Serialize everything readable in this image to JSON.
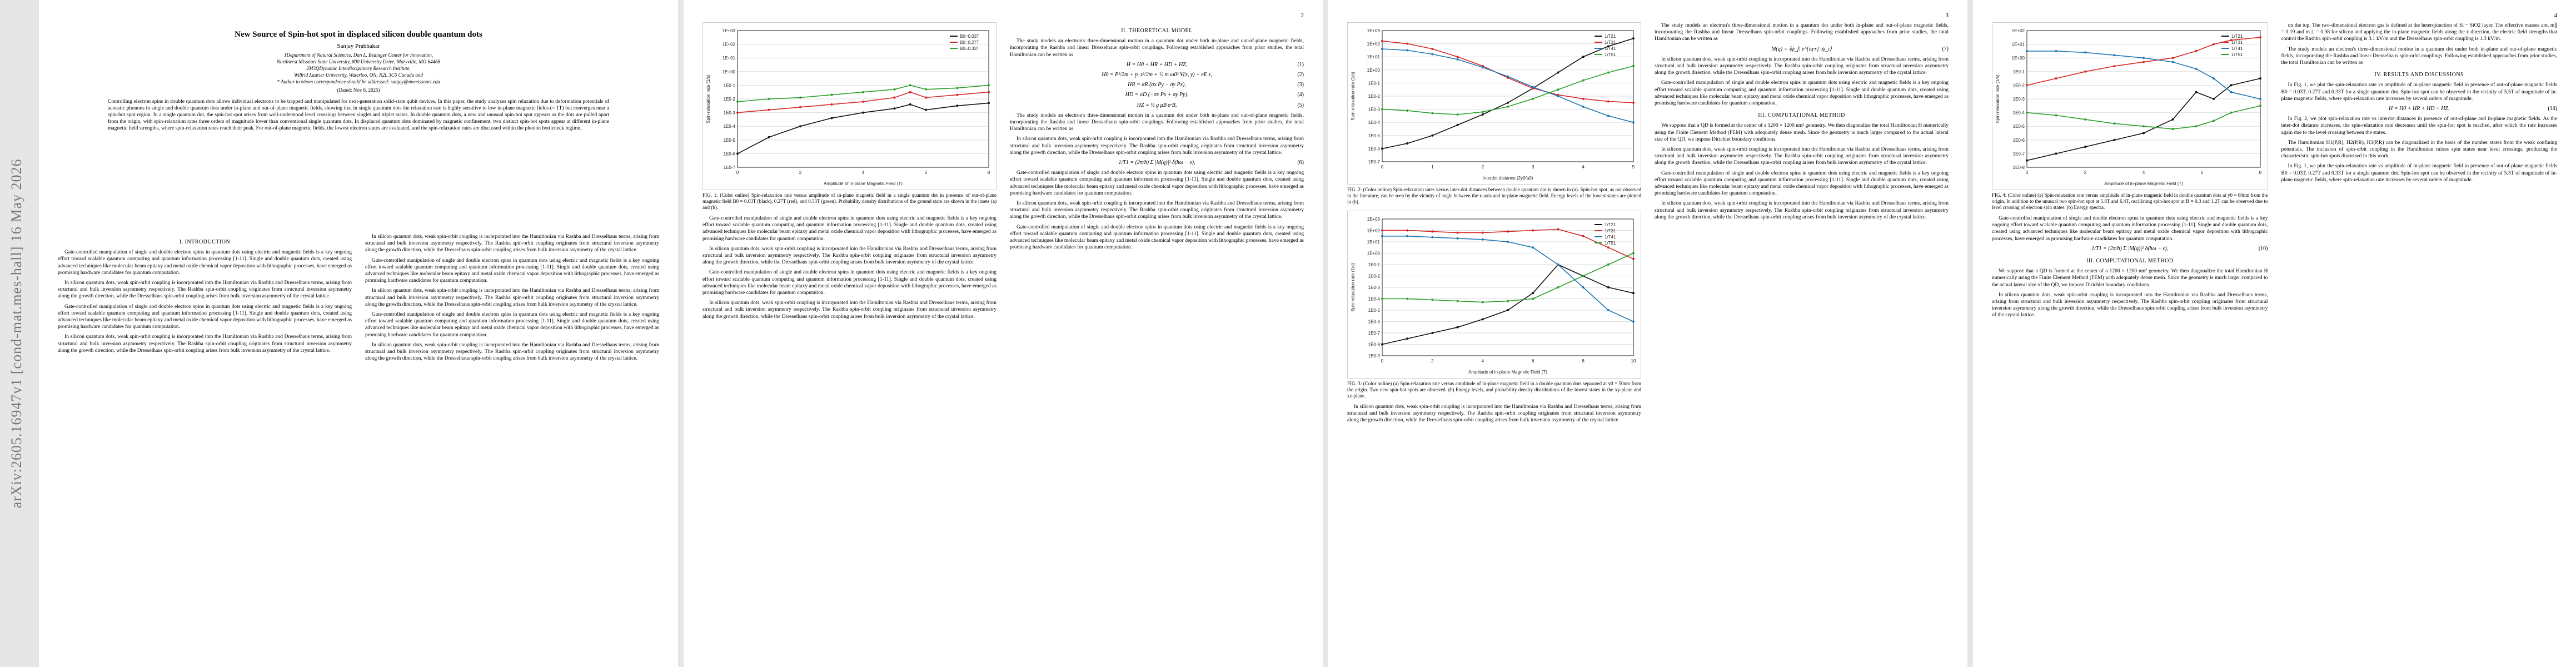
{
  "arxiv_id": "arXiv:2605.16947v1  [cond-mat.mes-hall]  16 May 2026",
  "pages": [
    {
      "number": ""
    },
    {
      "number": "2"
    },
    {
      "number": "3"
    },
    {
      "number": "4"
    }
  ],
  "paper": {
    "title": "New Source of Spin-hot spot in displaced silicon double quantum dots",
    "author": "Sanjay Prabhakar",
    "affiliations": [
      "1Department of Natural Sciences, Dan L. Bedinger Center for Innovation,",
      "Northwest Missouri State University, 800 University Drive, Maryville, MO 64468",
      "2M3QDynamic Interdisciplinary Research Institute,",
      "Wilfrid Laurier University, Waterloo, ON, N2L 3C5 Canada and",
      "* Author to whom correspondence should be addressed: sanjay@nwmissouri.edu"
    ],
    "date": "(Dated: Nov 8, 2025)",
    "abstract": "Controlling electron spins in double quantum dots allows individual electrons to be trapped and manipulated for next-generation solid-state qubit devices. In this paper, the study analyzes spin relaxation due to deformation potentials of acoustic phonons in single and double quantum dots under in-plane and out-of-plane magnetic fields, showing that in single quantum dots the relaxation rate is highly sensitive to low in-plane magnetic fields (< 1T) but converges near a spin-hot spot region. In a single quantum dot, the spin-hot spot arises from well-understood level crossings between singlet and triplet states. In double quantum dots, a new and unusual spin-hot spot appears as the dots are pulled apart from the origin, with spin-relaxation rates three orders of magnitude lower than conventional single quantum dots. In displaced quantum dots dominated by magnetic confinement, two distinct spin-hot spots appear at different in-plane magnetic field strengths, where spin-relaxation rates reach their peak. For out-of-plane magnetic fields, the lowest electron states are evaluated, and the spin-relaxation rates are discussed within the phonon bottleneck regime.",
    "section1": "I.   INTRODUCTION",
    "section2": "II.   THEORETICAL MODEL",
    "section3": "III.   COMPUTATIONAL METHOD",
    "section4": "IV.   RESULTS AND DISCUSSIONS",
    "intro_p1": "Gate-controlled manipulation of single and double electron spins in quantum dots using electric and magnetic fields is a key ongoing effort toward scalable quantum computing and quantum information processing [1-11]. Single and double quantum dots, created using advanced techniques like molecular beam epitaxy and metal oxide chemical vapor deposition with lithographic processes, have emerged as promising hardware candidates for quantum computation.",
    "intro_p2": "In silicon quantum dots, weak spin-orbit coupling is incorporated into the Hamiltonian via Rashba and Dresselhaus terms, arising from structural and bulk inversion asymmetry respectively. The Rashba spin-orbit coupling originates from structural inversion asymmetry along the growth direction, while the Dresselhaus spin-orbit coupling arises from bulk inversion asymmetry of the crystal lattice.",
    "model_p1": "The study models an electron's three-dimensional motion in a quantum dot under both in-plane and out-of-plane magnetic fields, incorporating the Rashba and linear Dresselhaus spin-orbit couplings. Following established approaches from prior studies, the total Hamiltonian can be written as",
    "eq1": "H = H0 + HR + HD + HZ,",
    "eq2": "H0 = P²/2m + p_z²/2m + ½ m ω0² V(x, y) + eE z,",
    "eq3": "HR = αR (σx Py − σy Px),",
    "eq4": "HD = αD (−σx Px + σy Py),",
    "eq5": "HZ = ½ g μB σ·B,",
    "fig1_caption": "FIG. 1: (Color online) Spin-relaxation rate versus amplitude of in-plane magnetic field in a single quantum dot in presence of out-of-plane magnetic field B0 = 0.03T (black), 0.27T (red), and 0.33T (green). Probability density distributions of the ground state are shown in the insets (a) and (b).",
    "fig2_caption": "FIG. 2: (Color online) Spin-relaxation rates versus inter-dot distances between double quantum dot is shown in (a). Spin-hot spot, as not observed in the literature, can be seen by the vicinity of angle between the x-axis and in-plane magnetic field. Energy levels of the lowest states are plotted in (b).",
    "fig3_caption": "FIG. 3: (Color online) (a) Spin-relaxation rate versus amplitude of in-plane magnetic field in a double quantum dots separated at y0 = 50nm from the origin. Two new spin-hot spots are observed. (b) Energy levels, and probability density distributions of the lowest states in the xy-plane and xz-plane.",
    "fig4_caption": "FIG. 4: (Color online) (a) Spin-relaxation rate versus amplitude of in-plane magnetic field in double quantum dots at y0 = 60nm from the origin. In addition to the unusual two spin-hot spot at 5.8T and 6.4T, oscillating spin-hot spot at B = 0.3 and 1.2T can be observed due to level crossing of electron spin states. (b) Energy spectra.",
    "eq_relax": "1/T1 = (2π/ħ) Σ |M(q)|² δ(ħω − ε),",
    "eq_m": "M(q) = ⟨ψ_f| e^{iq·r} |ψ_i⟩",
    "method_p1": "We suppose that a QD is formed at the center of a 1200 × 1200 nm² geometry. We then diagonalize the total Hamiltonian H numerically using the Finite Element Method (FEM) with adequately dense mesh. Since the geometry is much larger compared to the actual lateral size of the QD, we impose Dirichlet boundary conditions.",
    "results_p1": "In Fig. 1, we plot the spin-relaxation rate vs amplitude of in-plane magnetic field in presence of out-of-plane magnetic fields B0 = 0.03T, 0.27T and 0.33T for a single quantum dot. Spin-hot spot can be observed in the vicinity of 5.5T of magnitude of in-plane magnetic fields, where spin-relaxation rate increases by several orders of magnitude.",
    "results_p2": "In Fig. 2, we plot spin-relaxation rate vs interdot distances in presence of out-of-plane and in-plane magnetic fields. As the inter-dot distance increases, the spin-relaxation rate decreases until the spin-hot spot is reached, after which the rate increases again due to the level crossing between the states.",
    "col4_p1": "on the top. The two-dimensional electron gas is defined at the heterojunction of Si − SiO2 layer. The effective masses are, m∥ = 0.19 and m⊥ = 0.98 for silicon and applying the in-plane magnetic fields along the x direction, the electric field strengths that control the Rashba spin-orbit coupling is 3.1 kV/m and the Dresselhaus spin-orbit coupling is 1.3 kV/m.",
    "col4_p2": "The Hamiltonian H1(P,R), H2(P,R), H3(P,R) can be diagonalized in the basis of the number states from the weak confining potentials. The inclusion of spin-orbit coupling in the Hamiltonian mixes spin states near level crossings, producing the characteristic spin-hot spots discussed in this work."
  },
  "chart_data": [
    {
      "type": "line",
      "title": "",
      "xlabel": "Amplitude of in-plane Magnetic Field (T)",
      "ylabel": "Spin-relaxation rate (1/s)",
      "scale_y": "log",
      "xlim": [
        0,
        8
      ],
      "ylim_exp": [
        -7,
        3
      ],
      "series": [
        {
          "name": "B0=0.03T",
          "color": "#111111",
          "x": [
            0,
            1,
            2,
            3,
            4,
            5,
            5.5,
            6,
            7,
            8
          ],
          "y_exp": [
            -6,
            -4.8,
            -4,
            -3.4,
            -3,
            -2.7,
            -2.4,
            -2.8,
            -2.5,
            -2.3
          ]
        },
        {
          "name": "B0=0.27T",
          "color": "#d62728",
          "x": [
            0,
            1,
            2,
            3,
            4,
            5,
            5.5,
            6,
            7,
            8
          ],
          "y_exp": [
            -3,
            -2.8,
            -2.6,
            -2.4,
            -2.2,
            -1.9,
            -1.5,
            -1.9,
            -1.7,
            -1.5
          ]
        },
        {
          "name": "B0=0.33T",
          "color": "#2ca02c",
          "x": [
            0,
            1,
            2,
            3,
            4,
            5,
            5.5,
            6,
            7,
            8
          ],
          "y_exp": [
            -2.2,
            -2,
            -1.9,
            -1.7,
            -1.5,
            -1.3,
            -1,
            -1.3,
            -1.2,
            -1
          ]
        }
      ]
    },
    {
      "type": "line",
      "title": "",
      "xlabel": "Interdot distance (2y0/a0)",
      "ylabel": "Spin-relaxation rate (1/s)",
      "scale_y": "log",
      "xlim": [
        0,
        5
      ],
      "ylim_exp": [
        -7,
        3
      ],
      "series": [
        {
          "name": "1/T21",
          "color": "#111111",
          "x": [
            0,
            0.5,
            1,
            1.5,
            2,
            2.5,
            3,
            3.5,
            4,
            4.5,
            5
          ],
          "y_exp": [
            -6,
            -5.6,
            -5,
            -4.2,
            -3.4,
            -2.5,
            -1.4,
            -0.2,
            1,
            1.8,
            2.4
          ]
        },
        {
          "name": "1/T31",
          "color": "#d62728",
          "x": [
            0,
            0.5,
            1,
            1.5,
            2,
            2.5,
            3,
            3.5,
            4,
            4.5,
            5
          ],
          "y_exp": [
            2.2,
            2,
            1.6,
            1,
            0.3,
            -0.6,
            -1.4,
            -1.9,
            -2.2,
            -2.4,
            -2.5
          ]
        },
        {
          "name": "1/T41",
          "color": "#1f77b4",
          "x": [
            0,
            0.5,
            1,
            1.5,
            2,
            2.5,
            3,
            3.5,
            4,
            4.5,
            5
          ],
          "y_exp": [
            1.6,
            1.5,
            1.2,
            0.8,
            0.2,
            -0.5,
            -1.3,
            -2,
            -2.8,
            -3.5,
            -4
          ]
        },
        {
          "name": "1/T51",
          "color": "#2ca02c",
          "x": [
            0,
            0.5,
            1,
            1.5,
            2,
            2.5,
            3,
            3.5,
            4,
            4.5,
            5
          ],
          "y_exp": [
            -3,
            -3.1,
            -3.3,
            -3.4,
            -3.2,
            -2.8,
            -2.2,
            -1.5,
            -0.8,
            -0.2,
            0.3
          ]
        }
      ]
    },
    {
      "type": "line",
      "title": "",
      "xlabel": "Amplitude of in-plane Magnetic Field (T)",
      "ylabel": "Spin-relaxation rate (1/s)",
      "scale_y": "log",
      "xlim": [
        0,
        10
      ],
      "ylim_exp": [
        -9,
        3
      ],
      "series": [
        {
          "name": "1/T21",
          "color": "#111111",
          "x": [
            0,
            1,
            2,
            3,
            4,
            5,
            6,
            7,
            8,
            9,
            10
          ],
          "y_exp": [
            -8,
            -7.5,
            -7,
            -6.5,
            -5.8,
            -5,
            -3.5,
            -1,
            -2,
            -3,
            -3.5
          ]
        },
        {
          "name": "1/T31",
          "color": "#d62728",
          "x": [
            0,
            1,
            2,
            3,
            4,
            5,
            6,
            7,
            8,
            9,
            10
          ],
          "y_exp": [
            2,
            2,
            1.9,
            1.8,
            1.8,
            1.9,
            2,
            2.1,
            1.5,
            0.5,
            -0.5
          ]
        },
        {
          "name": "1/T41",
          "color": "#1f77b4",
          "x": [
            0,
            1,
            2,
            3,
            4,
            5,
            6,
            7,
            8,
            9,
            10
          ],
          "y_exp": [
            1.5,
            1.5,
            1.4,
            1.3,
            1.2,
            1,
            0.5,
            -1,
            -3,
            -5,
            -6
          ]
        },
        {
          "name": "1/T51",
          "color": "#2ca02c",
          "x": [
            0,
            1,
            2,
            3,
            4,
            5,
            6,
            7,
            8,
            9,
            10
          ],
          "y_exp": [
            -4,
            -4,
            -4.1,
            -4.2,
            -4.3,
            -4.2,
            -4,
            -3,
            -2,
            -1,
            0
          ]
        }
      ]
    },
    {
      "type": "line",
      "title": "",
      "xlabel": "Amplitude of in-plane Magnetic Field (T)",
      "ylabel": "Spin-relaxation rate (1/s)",
      "scale_y": "log",
      "xlim": [
        0,
        8
      ],
      "ylim_exp": [
        -8,
        2
      ],
      "series": [
        {
          "name": "1/T21",
          "color": "#111111",
          "x": [
            0,
            1,
            2,
            3,
            4,
            5,
            5.8,
            6.4,
            7,
            8
          ],
          "y_exp": [
            -7.5,
            -7,
            -6.5,
            -6,
            -5.5,
            -4.5,
            -2.5,
            -3,
            -2,
            -1.5
          ]
        },
        {
          "name": "1/T31",
          "color": "#d62728",
          "x": [
            0,
            1,
            2,
            3,
            4,
            5,
            5.8,
            6.4,
            7,
            8
          ],
          "y_exp": [
            -2,
            -1.5,
            -1,
            -0.6,
            -0.3,
            0,
            0.5,
            1,
            1.3,
            1.5
          ]
        },
        {
          "name": "1/T41",
          "color": "#1f77b4",
          "x": [
            0,
            1,
            2,
            3,
            4,
            5,
            5.8,
            6.4,
            7,
            8
          ],
          "y_exp": [
            0.5,
            0.5,
            0.4,
            0.2,
            0,
            -0.3,
            -0.8,
            -1.5,
            -2.5,
            -3
          ]
        },
        {
          "name": "1/T51",
          "color": "#2ca02c",
          "x": [
            0,
            1,
            2,
            3,
            4,
            5,
            5.8,
            6.4,
            7,
            8
          ],
          "y_exp": [
            -4,
            -4.2,
            -4.5,
            -4.8,
            -5,
            -5.2,
            -5,
            -4.6,
            -4,
            -3.5
          ]
        }
      ]
    }
  ]
}
